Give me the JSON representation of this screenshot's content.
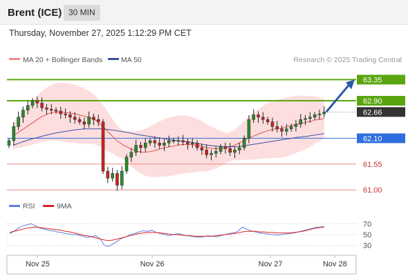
{
  "header": {
    "symbol": "Brent (ICE)",
    "timeframe": "30 MIN",
    "datetime": "Thursday, November 27, 2025 1:12:29 PM CET"
  },
  "colors": {
    "up": "#2c8a2c",
    "down": "#cc2222",
    "resistance": "#5aa50f",
    "pivot": "#2f6ee0",
    "support": "#ee8a8a",
    "last": "#333333",
    "ma20": "#e05050",
    "ma50": "#3b4fa0",
    "bollinger": "#fbd0d0",
    "arrow": "#2a5aa8",
    "rsi": "#5b7fe0",
    "rsi_ma": "#e02020"
  },
  "chart_data": [
    {
      "type": "candlestick",
      "x_ticks": [
        "Nov 25",
        "Nov 26",
        "Nov 27",
        "Nov 28"
      ],
      "x_tick_index": [
        8,
        40,
        73,
        91
      ],
      "ylim": [
        60.9,
        63.65
      ],
      "legend": [
        {
          "name": "MA 20 + Bollinger Bands",
          "color": "#ee8a8a"
        },
        {
          "name": "MA 50",
          "color": "#3b4fa0"
        }
      ],
      "watermark": "Research © 2025 Trading Central",
      "levels": [
        {
          "value": 63.35,
          "label": "63.35",
          "kind": "resistance"
        },
        {
          "value": 62.9,
          "label": "62.90",
          "kind": "resistance"
        },
        {
          "value": 62.66,
          "label": "62.66",
          "kind": "last"
        },
        {
          "value": 62.1,
          "label": "62.10",
          "kind": "pivot"
        },
        {
          "value": 61.55,
          "label": "61.55",
          "kind": "support"
        },
        {
          "value": 61.0,
          "label": "61.00",
          "kind": "support"
        }
      ],
      "close": [
        62.05,
        62.35,
        62.55,
        62.7,
        62.8,
        62.9,
        62.85,
        62.75,
        62.72,
        62.7,
        62.68,
        62.62,
        62.6,
        62.55,
        62.5,
        62.45,
        62.4,
        62.55,
        62.5,
        62.45,
        61.4,
        61.25,
        61.35,
        61.1,
        61.4,
        61.7,
        61.8,
        61.95,
        61.9,
        62.0,
        62.05,
        62.0,
        61.95,
        62.0,
        62.05,
        62.05,
        62.05,
        62.02,
        61.98,
        62.0,
        61.9,
        61.85,
        61.75,
        61.78,
        61.82,
        61.92,
        61.88,
        61.8,
        61.85,
        61.9,
        62.1,
        62.5,
        62.6,
        62.55,
        62.5,
        62.45,
        62.35,
        62.3,
        62.25,
        62.3,
        62.35,
        62.4,
        62.5,
        62.52,
        62.55,
        62.6,
        62.62,
        62.66
      ],
      "x_index_start": 0,
      "ma20": [
        62.15,
        62.25,
        62.35,
        62.45,
        62.55,
        62.62,
        62.66,
        62.66,
        62.64,
        62.62,
        62.58,
        62.55,
        62.48,
        62.35,
        62.2,
        62.05,
        61.95,
        61.88,
        61.82,
        61.8,
        61.82,
        61.86,
        61.9,
        61.93,
        61.96,
        61.97,
        61.96,
        61.94,
        61.9,
        61.88,
        61.88,
        61.9,
        61.95,
        62.02,
        62.1,
        62.16,
        62.22,
        62.27,
        62.3,
        62.32,
        62.36,
        62.4,
        62.43,
        62.46,
        62.5,
        62.52
      ],
      "ma50": [
        61.95,
        62.02,
        62.08,
        62.13,
        62.18,
        62.22,
        62.25,
        62.28,
        62.3,
        62.3,
        62.3,
        62.28,
        62.25,
        62.22,
        62.18,
        62.15,
        62.12,
        62.09,
        62.06,
        62.04,
        62.02,
        61.98,
        61.95,
        61.93,
        61.92,
        61.92,
        61.94,
        61.97,
        62.0,
        62.03,
        62.06,
        62.09,
        62.12,
        62.14,
        62.17,
        62.2
      ],
      "projection_target": 63.35
    },
    {
      "type": "line",
      "legend": [
        {
          "name": "RSI",
          "color": "#5b7fe0"
        },
        {
          "name": "9MA",
          "color": "#e02020"
        }
      ],
      "y_ticks": [
        70,
        50,
        30
      ],
      "ylim": [
        22,
        78
      ],
      "series": [
        {
          "name": "RSI",
          "values": [
            52,
            56,
            62,
            66,
            68,
            70,
            66,
            62,
            60,
            58,
            57,
            55,
            54,
            52,
            51,
            50,
            49,
            47,
            45,
            46,
            48,
            42,
            30,
            28,
            33,
            38,
            43,
            46,
            50,
            52,
            55,
            57,
            56,
            58,
            54,
            52,
            50,
            48,
            50,
            52,
            50,
            48,
            47,
            46,
            45,
            46,
            48,
            47,
            46,
            48,
            50,
            52,
            53,
            56,
            64,
            60,
            57,
            55,
            53,
            52,
            51,
            50,
            49,
            50,
            51,
            52,
            53,
            55,
            57,
            59,
            61,
            63,
            64,
            65
          ]
        },
        {
          "name": "9MA",
          "values": [
            54,
            56,
            58,
            60,
            62,
            63,
            64,
            63,
            62,
            61,
            60,
            59,
            58,
            56,
            55,
            53,
            51,
            49,
            48,
            46,
            44,
            42,
            40,
            39,
            40,
            42,
            44,
            46,
            48,
            50,
            52,
            53,
            54,
            54,
            54,
            53,
            52,
            51,
            50,
            50,
            49,
            48,
            48,
            47,
            47,
            47,
            47,
            47,
            48,
            49,
            50,
            51,
            52,
            53,
            55,
            56,
            56,
            56,
            55,
            55,
            54,
            54,
            53,
            53,
            53,
            53,
            54,
            55,
            56,
            58,
            60,
            62,
            63,
            64
          ]
        }
      ]
    }
  ]
}
